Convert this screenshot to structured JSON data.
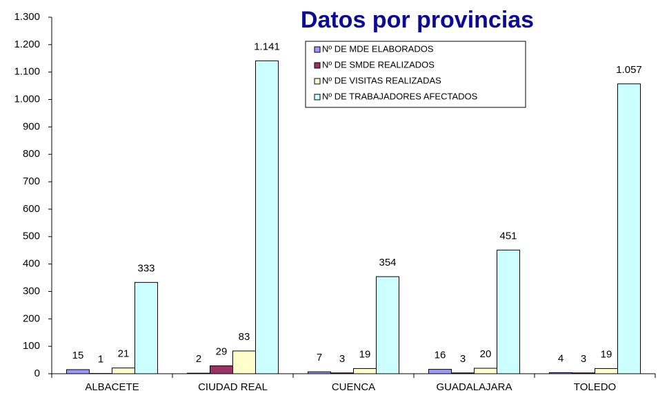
{
  "chart_data": {
    "type": "bar",
    "title": "Datos por provincias",
    "categories": [
      "ALBACETE",
      "CIUDAD REAL",
      "CUENCA",
      "GUADALAJARA",
      "TOLEDO"
    ],
    "series": [
      {
        "name": "Nº DE MDE ELABORADOS",
        "color": "#9999ff",
        "values": [
          15,
          2,
          7,
          16,
          4
        ]
      },
      {
        "name": "Nº DE SMDE REALIZADOS",
        "color": "#993366",
        "values": [
          1,
          29,
          3,
          3,
          3
        ]
      },
      {
        "name": "Nº DE VISITAS REALIZADAS",
        "color": "#ffffcc",
        "values": [
          21,
          83,
          19,
          20,
          19
        ]
      },
      {
        "name": "Nº DE TRABAJADORES AFECTADOS",
        "color": "#ccffff",
        "values": [
          333,
          1141,
          354,
          451,
          1057
        ],
        "value_labels": [
          "333",
          "1.141",
          "354",
          "451",
          "1.057"
        ]
      }
    ],
    "ylim": [
      0,
      1300
    ],
    "yticks": [
      0,
      100,
      200,
      300,
      400,
      500,
      600,
      700,
      800,
      900,
      {
        "value": 1000,
        "label": "1.000"
      },
      {
        "value": 1100,
        "label": "1.100"
      },
      {
        "value": 1200,
        "label": "1.200"
      },
      {
        "value": 1300,
        "label": "1.300"
      }
    ],
    "grid": false
  }
}
